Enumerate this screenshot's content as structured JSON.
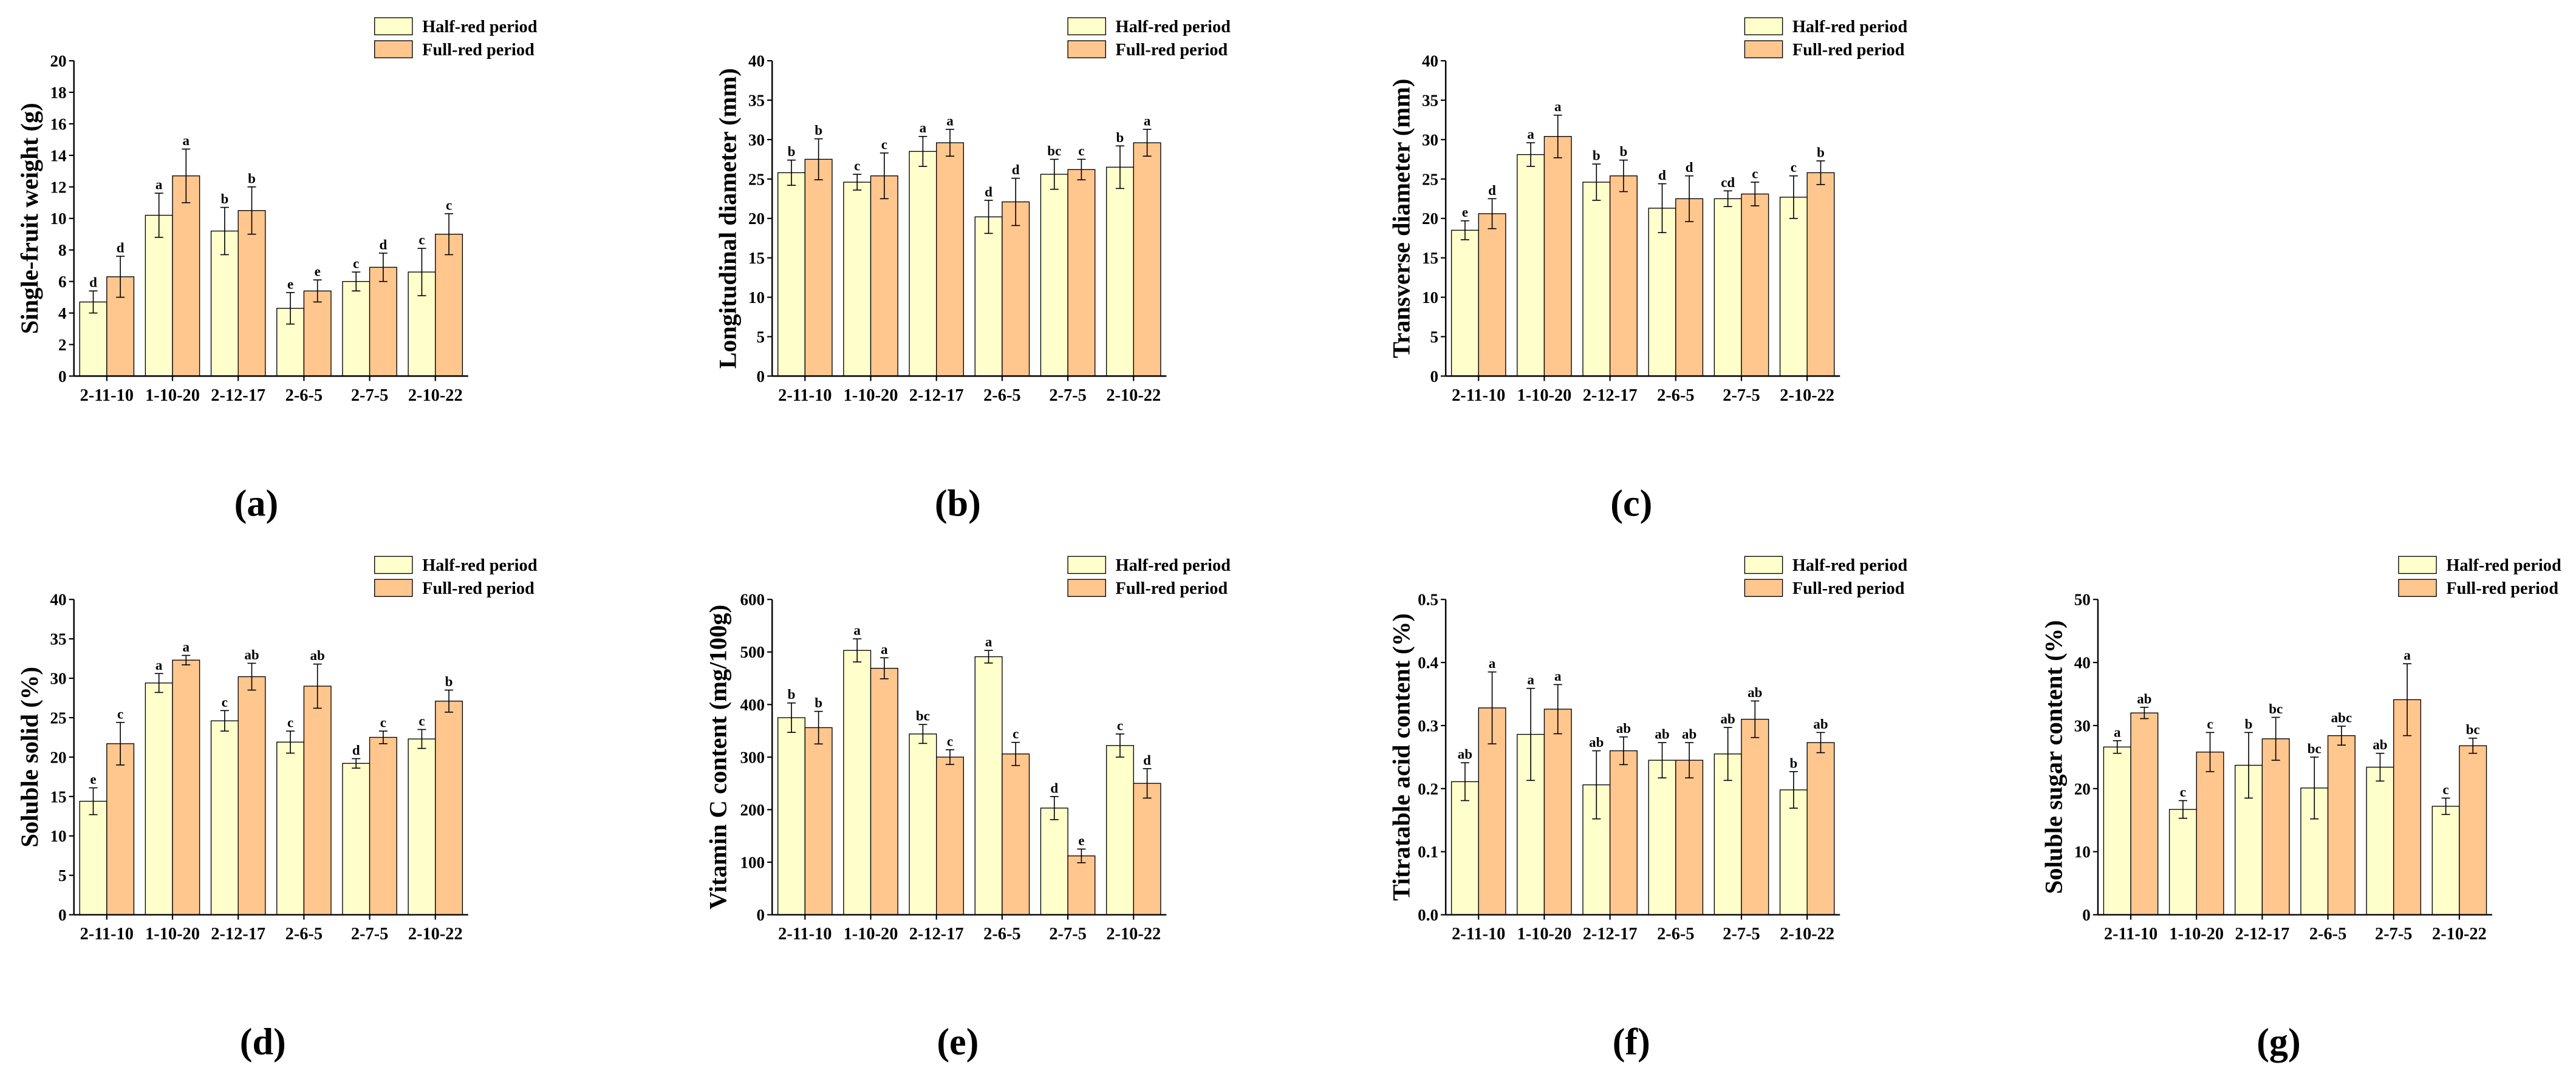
{
  "chart_data": [
    {
      "type": "bar",
      "panel_label": "(a)",
      "title": "",
      "xlabel": "",
      "ylabel": "Single-fruit weight (g)",
      "ylim": [
        0,
        20
      ],
      "yticks": [
        "0",
        "2",
        "4",
        "6",
        "8",
        "10",
        "12",
        "14",
        "16",
        "18",
        "20"
      ],
      "categories": [
        "2-11-10",
        "1-10-20",
        "2-12-17",
        "2-6-5",
        "2-7-5",
        "2-10-22"
      ],
      "series": [
        {
          "name": "Half-red period",
          "color": "#FFFFCC",
          "values": [
            4.7,
            10.2,
            9.2,
            4.3,
            6.0,
            6.6
          ],
          "errors": [
            0.7,
            1.4,
            1.5,
            1.0,
            0.6,
            1.5
          ],
          "letters": [
            "d",
            "a",
            "b",
            "e",
            "c",
            "c"
          ]
        },
        {
          "name": "Full-red period",
          "color": "#FFC68E",
          "values": [
            6.3,
            12.7,
            10.5,
            5.4,
            6.9,
            9.0
          ],
          "errors": [
            1.3,
            1.7,
            1.5,
            0.7,
            0.9,
            1.3
          ],
          "letters": [
            "d",
            "a",
            "b",
            "e",
            "d",
            "c"
          ]
        }
      ]
    },
    {
      "type": "bar",
      "panel_label": "(b)",
      "title": "",
      "xlabel": "",
      "ylabel": "Longitudinal diameter (mm)",
      "ylim": [
        0,
        40
      ],
      "yticks": [
        "0",
        "5",
        "10",
        "15",
        "20",
        "25",
        "30",
        "35",
        "40"
      ],
      "categories": [
        "2-11-10",
        "1-10-20",
        "2-12-17",
        "2-6-5",
        "2-7-5",
        "2-10-22"
      ],
      "series": [
        {
          "name": "Half-red period",
          "color": "#FFFFCC",
          "values": [
            25.8,
            24.6,
            28.5,
            20.2,
            25.6,
            26.5
          ],
          "errors": [
            1.6,
            1.0,
            1.9,
            2.1,
            1.9,
            2.7
          ],
          "letters": [
            "b",
            "c",
            "a",
            "d",
            "bc",
            "b"
          ]
        },
        {
          "name": "Full-red period",
          "color": "#FFC68E",
          "values": [
            27.5,
            25.4,
            29.6,
            22.1,
            26.2,
            29.6
          ],
          "errors": [
            2.6,
            2.9,
            1.7,
            3.0,
            1.3,
            1.7
          ],
          "letters": [
            "b",
            "c",
            "a",
            "d",
            "c",
            "a"
          ]
        }
      ]
    },
    {
      "type": "bar",
      "panel_label": "(c)",
      "title": "",
      "xlabel": "",
      "ylabel": "Transverse diameter (mm)",
      "ylim": [
        0,
        40
      ],
      "yticks": [
        "0",
        "5",
        "10",
        "15",
        "20",
        "25",
        "30",
        "35",
        "40"
      ],
      "categories": [
        "2-11-10",
        "1-10-20",
        "2-12-17",
        "2-6-5",
        "2-7-5",
        "2-10-22"
      ],
      "series": [
        {
          "name": "Half-red period",
          "color": "#FFFFCC",
          "values": [
            18.5,
            28.1,
            24.6,
            21.3,
            22.5,
            22.7
          ],
          "errors": [
            1.2,
            1.5,
            2.3,
            3.1,
            1.0,
            2.7
          ],
          "letters": [
            "e",
            "a",
            "b",
            "d",
            "cd",
            "c"
          ]
        },
        {
          "name": "Full-red period",
          "color": "#FFC68E",
          "values": [
            20.6,
            30.4,
            25.4,
            22.5,
            23.1,
            25.8
          ],
          "errors": [
            1.9,
            2.7,
            2.0,
            2.9,
            1.5,
            1.5
          ],
          "letters": [
            "d",
            "a",
            "b",
            "d",
            "c",
            "b"
          ]
        }
      ]
    },
    {
      "type": "bar",
      "panel_label": "(d)",
      "title": "",
      "xlabel": "",
      "ylabel": "Soluble solid (%)",
      "ylim": [
        0,
        40
      ],
      "yticks": [
        "0",
        "5",
        "10",
        "15",
        "20",
        "25",
        "30",
        "35",
        "40"
      ],
      "categories": [
        "2-11-10",
        "1-10-20",
        "2-12-17",
        "2-6-5",
        "2-7-5",
        "2-10-22"
      ],
      "series": [
        {
          "name": "Half-red period",
          "color": "#FFFFCC",
          "values": [
            14.4,
            29.4,
            24.6,
            21.9,
            19.2,
            22.3
          ],
          "errors": [
            1.7,
            1.2,
            1.3,
            1.4,
            0.6,
            1.2
          ],
          "letters": [
            "e",
            "a",
            "c",
            "c",
            "d",
            "c"
          ]
        },
        {
          "name": "Full-red period",
          "color": "#FFC68E",
          "values": [
            21.7,
            32.3,
            30.2,
            29.0,
            22.5,
            27.1
          ],
          "errors": [
            2.7,
            0.6,
            1.7,
            2.8,
            0.8,
            1.4
          ],
          "letters": [
            "c",
            "a",
            "ab",
            "ab",
            "c",
            "b"
          ]
        }
      ]
    },
    {
      "type": "bar",
      "panel_label": "(e)",
      "title": "",
      "xlabel": "",
      "ylabel": "Vitamin C content (mg/100g)",
      "ylim": [
        0,
        600
      ],
      "yticks": [
        "0",
        "100",
        "200",
        "300",
        "400",
        "500",
        "600"
      ],
      "categories": [
        "2-11-10",
        "1-10-20",
        "2-12-17",
        "2-6-5",
        "2-7-5",
        "2-10-22"
      ],
      "series": [
        {
          "name": "Half-red period",
          "color": "#FFFFCC",
          "values": [
            375,
            503,
            344,
            491,
            203,
            322
          ],
          "errors": [
            28,
            22,
            18,
            12,
            22,
            22
          ],
          "letters": [
            "b",
            "a",
            "bc",
            "a",
            "d",
            "c"
          ]
        },
        {
          "name": "Full-red period",
          "color": "#FFC68E",
          "values": [
            356,
            469,
            300,
            306,
            112,
            250
          ],
          "errors": [
            31,
            20,
            14,
            22,
            13,
            28
          ],
          "letters": [
            "b",
            "a",
            "c",
            "c",
            "e",
            "d"
          ]
        }
      ]
    },
    {
      "type": "bar",
      "panel_label": "(f)",
      "title": "",
      "xlabel": "",
      "ylabel": "Titratable acid content (%)",
      "ylim": [
        0,
        0.5
      ],
      "yticks": [
        "0.0",
        "0.1",
        "0.2",
        "0.3",
        "0.4",
        "0.5"
      ],
      "categories": [
        "2-11-10",
        "1-10-20",
        "2-12-17",
        "2-6-5",
        "2-7-5",
        "2-10-22"
      ],
      "series": [
        {
          "name": "Half-red period",
          "color": "#FFFFCC",
          "values": [
            0.211,
            0.286,
            0.206,
            0.245,
            0.255,
            0.198
          ],
          "errors": [
            0.03,
            0.073,
            0.054,
            0.028,
            0.042,
            0.029
          ],
          "letters": [
            "ab",
            "a",
            "ab",
            "ab",
            "ab",
            "b"
          ]
        },
        {
          "name": "Full-red period",
          "color": "#FFC68E",
          "values": [
            0.328,
            0.326,
            0.26,
            0.245,
            0.31,
            0.273
          ],
          "errors": [
            0.057,
            0.039,
            0.022,
            0.028,
            0.029,
            0.016
          ],
          "letters": [
            "a",
            "a",
            "ab",
            "ab",
            "ab",
            "ab"
          ]
        }
      ]
    },
    {
      "type": "bar",
      "panel_label": "(g)",
      "title": "",
      "xlabel": "",
      "ylabel": "Soluble sugar content (%)",
      "ylim": [
        0,
        50
      ],
      "yticks": [
        "0",
        "10",
        "20",
        "30",
        "40",
        "50"
      ],
      "categories": [
        "2-11-10",
        "1-10-20",
        "2-12-17",
        "2-6-5",
        "2-7-5",
        "2-10-22"
      ],
      "series": [
        {
          "name": "Half-red period",
          "color": "#FFFFCC",
          "values": [
            26.6,
            16.7,
            23.7,
            20.1,
            23.4,
            17.2
          ],
          "errors": [
            1.0,
            1.4,
            5.2,
            4.9,
            2.2,
            1.3
          ],
          "letters": [
            "a",
            "c",
            "b",
            "bc",
            "ab",
            "c"
          ]
        },
        {
          "name": "Full-red period",
          "color": "#FFC68E",
          "values": [
            32.0,
            25.8,
            27.9,
            28.4,
            34.1,
            26.8
          ],
          "errors": [
            0.9,
            3.1,
            3.4,
            1.5,
            5.7,
            1.2
          ],
          "letters": [
            "ab",
            "c",
            "bc",
            "abc",
            "a",
            "bc"
          ]
        }
      ]
    }
  ]
}
